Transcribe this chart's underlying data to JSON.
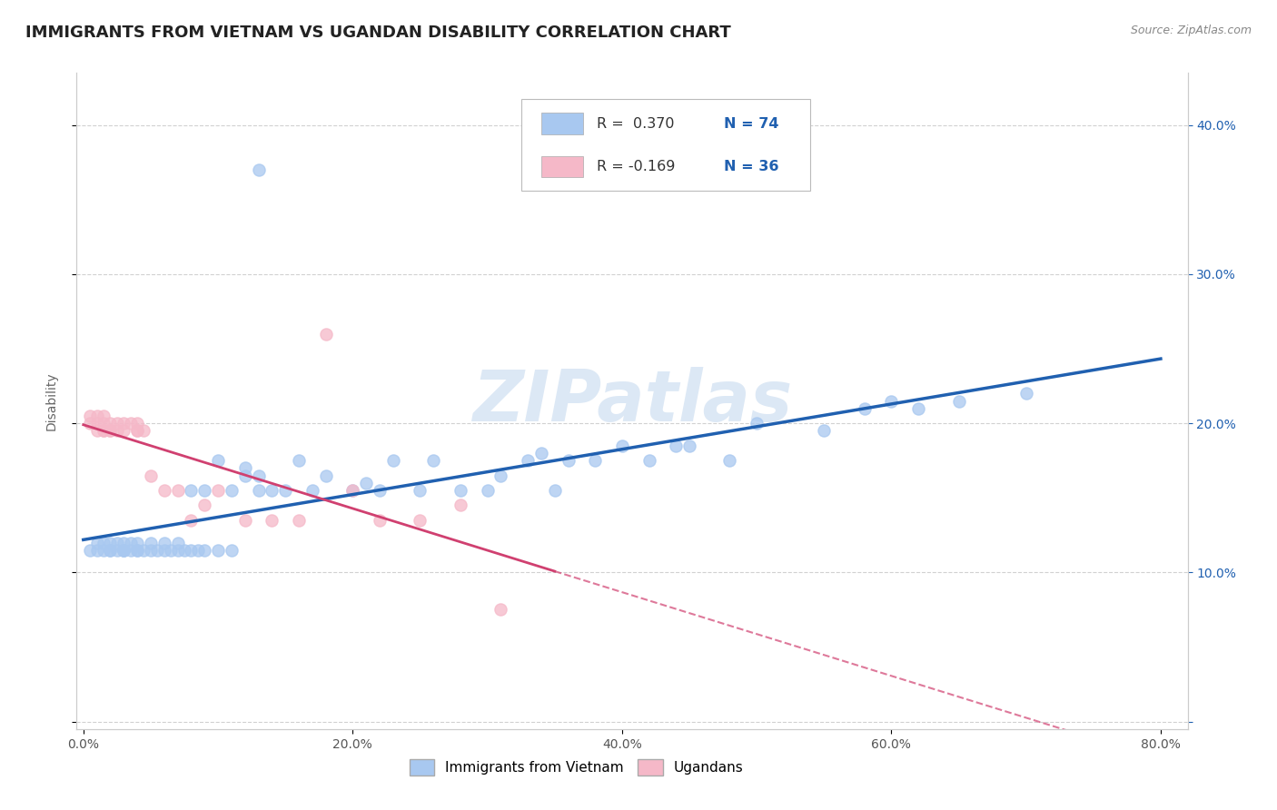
{
  "title": "IMMIGRANTS FROM VIETNAM VS UGANDAN DISABILITY CORRELATION CHART",
  "source": "Source: ZipAtlas.com",
  "ylabel": "Disability",
  "watermark": "ZIPatlas",
  "xlim": [
    -0.005,
    0.82
  ],
  "ylim": [
    -0.005,
    0.435
  ],
  "xticks": [
    0.0,
    0.2,
    0.4,
    0.6,
    0.8
  ],
  "xticklabels": [
    "0.0%",
    "20.0%",
    "40.0%",
    "60.0%",
    "80.0%"
  ],
  "yticks": [
    0.0,
    0.1,
    0.2,
    0.3,
    0.4
  ],
  "yticklabels": [
    "",
    "10.0%",
    "20.0%",
    "30.0%",
    "40.0%"
  ],
  "series1_label": "Immigrants from Vietnam",
  "series2_label": "Ugandans",
  "R1": 0.37,
  "N1": 74,
  "R2": -0.169,
  "N2": 36,
  "color1": "#a8c8f0",
  "color2": "#f5b8c8",
  "line1_color": "#2060b0",
  "line2_color": "#d04070",
  "vietnam_x": [
    0.005,
    0.01,
    0.01,
    0.015,
    0.015,
    0.02,
    0.02,
    0.02,
    0.025,
    0.025,
    0.03,
    0.03,
    0.03,
    0.03,
    0.035,
    0.035,
    0.04,
    0.04,
    0.04,
    0.045,
    0.05,
    0.05,
    0.055,
    0.06,
    0.06,
    0.065,
    0.07,
    0.07,
    0.075,
    0.08,
    0.08,
    0.085,
    0.09,
    0.09,
    0.1,
    0.1,
    0.11,
    0.11,
    0.12,
    0.12,
    0.13,
    0.13,
    0.14,
    0.15,
    0.16,
    0.17,
    0.18,
    0.2,
    0.21,
    0.22,
    0.23,
    0.25,
    0.26,
    0.28,
    0.3,
    0.31,
    0.33,
    0.34,
    0.35,
    0.36,
    0.38,
    0.4,
    0.42,
    0.44,
    0.45,
    0.48,
    0.5,
    0.55,
    0.58,
    0.6,
    0.62,
    0.65,
    0.7,
    0.13
  ],
  "vietnam_y": [
    0.115,
    0.115,
    0.12,
    0.115,
    0.12,
    0.115,
    0.12,
    0.115,
    0.115,
    0.12,
    0.115,
    0.115,
    0.12,
    0.115,
    0.12,
    0.115,
    0.115,
    0.12,
    0.115,
    0.115,
    0.115,
    0.12,
    0.115,
    0.115,
    0.12,
    0.115,
    0.115,
    0.12,
    0.115,
    0.115,
    0.155,
    0.115,
    0.115,
    0.155,
    0.115,
    0.175,
    0.115,
    0.155,
    0.165,
    0.17,
    0.155,
    0.165,
    0.155,
    0.155,
    0.175,
    0.155,
    0.165,
    0.155,
    0.16,
    0.155,
    0.175,
    0.155,
    0.175,
    0.155,
    0.155,
    0.165,
    0.175,
    0.18,
    0.155,
    0.175,
    0.175,
    0.185,
    0.175,
    0.185,
    0.185,
    0.175,
    0.2,
    0.195,
    0.21,
    0.215,
    0.21,
    0.215,
    0.22,
    0.37
  ],
  "uganda_x": [
    0.005,
    0.005,
    0.01,
    0.01,
    0.01,
    0.015,
    0.015,
    0.015,
    0.015,
    0.02,
    0.02,
    0.02,
    0.025,
    0.025,
    0.03,
    0.03,
    0.035,
    0.04,
    0.04,
    0.04,
    0.045,
    0.05,
    0.06,
    0.07,
    0.08,
    0.09,
    0.1,
    0.12,
    0.14,
    0.16,
    0.18,
    0.2,
    0.22,
    0.25,
    0.28,
    0.31
  ],
  "uganda_y": [
    0.2,
    0.205,
    0.195,
    0.2,
    0.205,
    0.195,
    0.2,
    0.195,
    0.205,
    0.195,
    0.2,
    0.195,
    0.2,
    0.195,
    0.195,
    0.2,
    0.2,
    0.195,
    0.2,
    0.195,
    0.195,
    0.165,
    0.155,
    0.155,
    0.135,
    0.145,
    0.155,
    0.135,
    0.135,
    0.135,
    0.26,
    0.155,
    0.135,
    0.135,
    0.145,
    0.075
  ],
  "background_color": "#ffffff",
  "grid_color": "#cccccc",
  "title_fontsize": 13,
  "axis_fontsize": 10,
  "tick_fontsize": 10,
  "legend_fontsize": 11
}
